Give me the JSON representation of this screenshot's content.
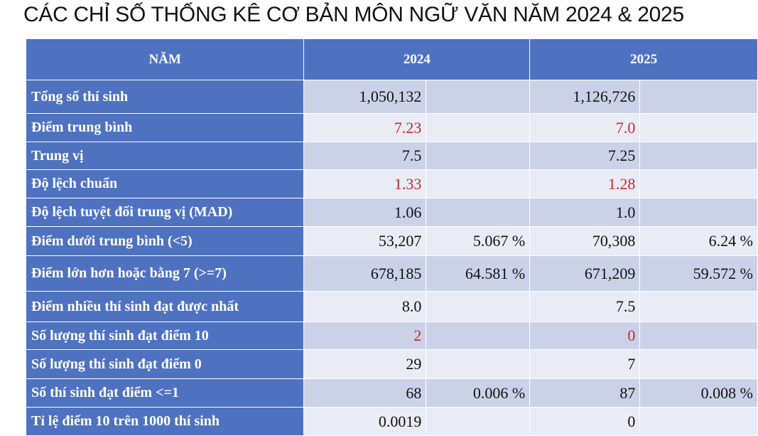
{
  "title": "CÁC CHỈ SỐ THỐNG KÊ CƠ BẢN MÔN NGỮ VĂN NĂM 2024 & 2025",
  "header": {
    "col_label": "NĂM",
    "year1": "2024",
    "year2": "2025"
  },
  "accent_colors": {
    "header_blue": "#4f72c0",
    "row_dark": "#cbd2e8",
    "row_light": "#e9ecf5",
    "highlight_red": "#c62828"
  },
  "rows": [
    {
      "label": "Tổng số thí sinh",
      "v2024": "1,050,132",
      "p2024": "",
      "v2025": "1,126,726",
      "p2025": ""
    },
    {
      "label": "Điểm trung bình",
      "v2024": "7.23",
      "p2024": "",
      "v2025": "7.0",
      "p2025": ""
    },
    {
      "label": "Trung vị",
      "v2024": "7.5",
      "p2024": "",
      "v2025": "7.25",
      "p2025": ""
    },
    {
      "label": "Độ lệch chuẩn",
      "v2024": "1.33",
      "p2024": "",
      "v2025": "1.28",
      "p2025": ""
    },
    {
      "label": "Độ lệch tuyệt đối trung vị (MAD)",
      "v2024": "1.06",
      "p2024": "",
      "v2025": "1.0",
      "p2025": ""
    },
    {
      "label": "Điểm dưới trung bình (<5)",
      "v2024": "53,207",
      "p2024": "5.067 %",
      "v2025": "70,308",
      "p2025": "6.24 %"
    },
    {
      "label": "Điểm lớn hơn hoặc bằng 7 (>=7)",
      "v2024": "678,185",
      "p2024": "64.581 %",
      "v2025": "671,209",
      "p2025": "59.572 %"
    },
    {
      "label": "Điểm nhiều thí sinh đạt được nhất",
      "v2024": "8.0",
      "p2024": "",
      "v2025": "7.5",
      "p2025": ""
    },
    {
      "label": "Số lượng thí sinh đạt điểm 10",
      "v2024": "2",
      "p2024": "",
      "v2025": "0",
      "p2025": ""
    },
    {
      "label": "Số lượng thí sinh đạt điểm 0",
      "v2024": "29",
      "p2024": "",
      "v2025": "7",
      "p2025": ""
    },
    {
      "label": "Số thí sinh đạt điểm <=1",
      "v2024": "68",
      "p2024": "0.006 %",
      "v2025": "87",
      "p2025": "0.008 %"
    },
    {
      "label": "Tỉ lệ điểm 10 trên 1000 thí sinh",
      "v2024": "0.0019",
      "p2024": "",
      "v2025": "0",
      "p2025": ""
    }
  ]
}
